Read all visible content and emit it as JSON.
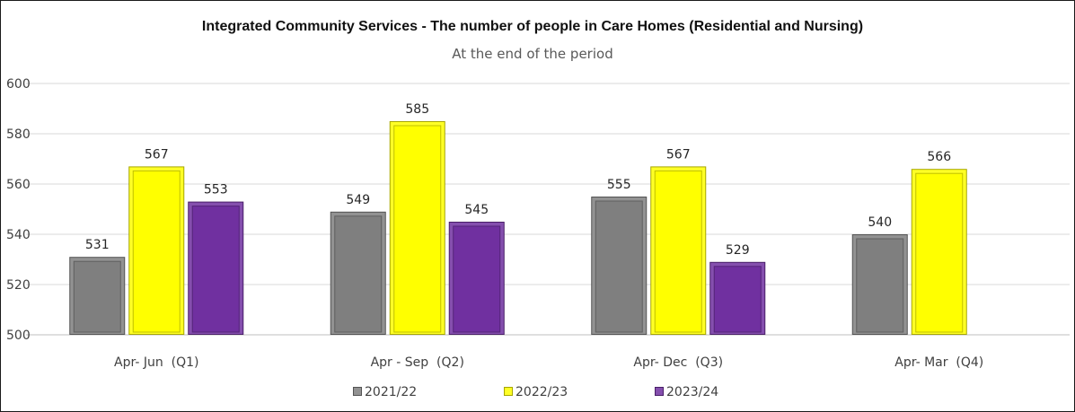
{
  "chart_data": {
    "type": "bar",
    "title": "Integrated Community Services - The number of people in Care Homes (Residential and Nursing)",
    "subtitle": "At the end of the period",
    "categories": [
      "Apr- Jun  (Q1)",
      "Apr - Sep  (Q2)",
      "Apr- Dec  (Q3)",
      "Apr- Mar  (Q4)"
    ],
    "series": [
      {
        "name": "2021/22",
        "color": "#7f7f7f",
        "values": [
          531,
          549,
          555,
          540
        ]
      },
      {
        "name": "2022/23",
        "color": "#ffff00",
        "values": [
          567,
          585,
          567,
          566
        ]
      },
      {
        "name": "2023/24",
        "color": "#7030a0",
        "values": [
          553,
          545,
          529,
          null
        ]
      }
    ],
    "ylim": [
      500,
      600
    ],
    "yticks": [
      "500",
      "520",
      "540",
      "560",
      "580",
      "600"
    ],
    "grid": true,
    "legend": "bottom"
  }
}
